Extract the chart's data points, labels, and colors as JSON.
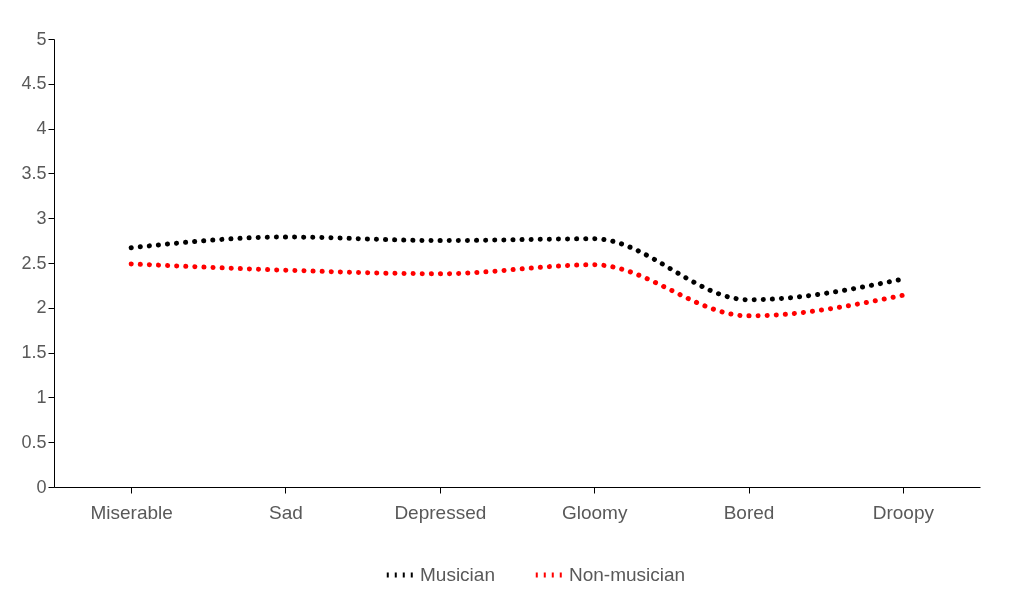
{
  "chart_data": {
    "type": "line",
    "categories": [
      "Miserable",
      "Sad",
      "Depressed",
      "Gloomy",
      "Bored",
      "Droopy"
    ],
    "series": [
      {
        "name": "Musician",
        "color": "#000000",
        "values": [
          2.67,
          2.79,
          2.75,
          2.77,
          2.09,
          2.32
        ]
      },
      {
        "name": "Non-musician",
        "color": "#ff0000",
        "values": [
          2.49,
          2.42,
          2.38,
          2.48,
          1.91,
          2.14
        ]
      }
    ],
    "ylim": [
      0,
      5
    ],
    "yticks": [
      0,
      0.5,
      1,
      1.5,
      2,
      2.5,
      3,
      3.5,
      4,
      4.5,
      5
    ],
    "grid": false,
    "legend": "bottom",
    "line_style": "dotted",
    "marker": "none"
  }
}
